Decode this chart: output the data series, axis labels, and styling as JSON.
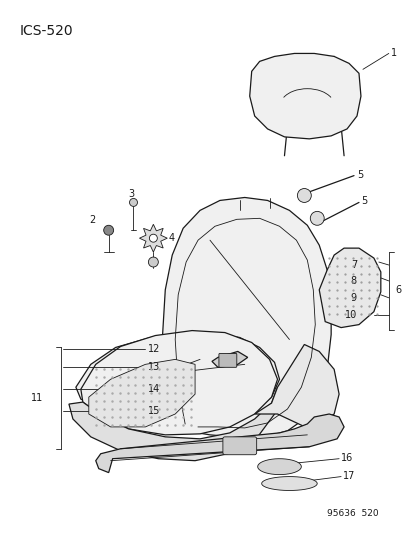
{
  "title": "ICS-520",
  "footer": "95636  520",
  "bg_color": "#ffffff",
  "line_color": "#1a1a1a",
  "label_color": "#1a1a1a",
  "title_fontsize": 10,
  "label_fontsize": 7,
  "footer_fontsize": 6.5
}
